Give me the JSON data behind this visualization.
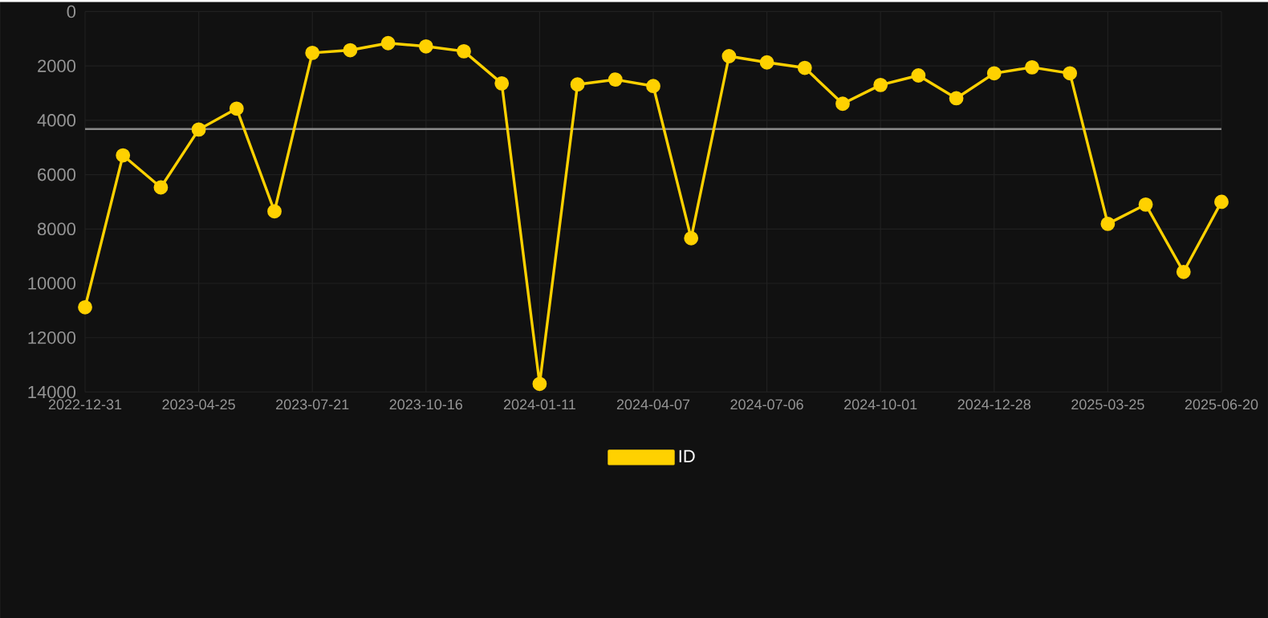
{
  "chart_data": {
    "type": "line",
    "categories": [
      "2022-12-31",
      null,
      null,
      "2023-04-25",
      null,
      null,
      "2023-07-21",
      null,
      null,
      "2023-10-16",
      null,
      null,
      "2024-01-11",
      null,
      null,
      "2024-04-07",
      null,
      null,
      "2024-07-06",
      null,
      null,
      "2024-10-01",
      null,
      null,
      "2024-12-28",
      null,
      null,
      "2025-03-25",
      null,
      null,
      "2025-06-20"
    ],
    "series": [
      {
        "name": "ID",
        "color": "#ffd100",
        "values": [
          10880,
          5290,
          6470,
          4340,
          3570,
          7350,
          1520,
          1420,
          1160,
          1280,
          1460,
          2640,
          13700,
          2680,
          2500,
          2740,
          8340,
          1640,
          1870,
          2070,
          3390,
          2700,
          2350,
          3190,
          2270,
          2050,
          2270,
          7810,
          7100,
          9580,
          7000
        ]
      }
    ],
    "ylim": [
      14000,
      0
    ],
    "yticks": [
      0,
      2000,
      4000,
      6000,
      8000,
      10000,
      12000,
      14000
    ],
    "ref_lines": [
      {
        "axis": "y",
        "value": 4320,
        "color": "#8a8a8a"
      }
    ],
    "grid": true,
    "legend": "bottom",
    "marker": "circle",
    "line_style": "solid"
  }
}
